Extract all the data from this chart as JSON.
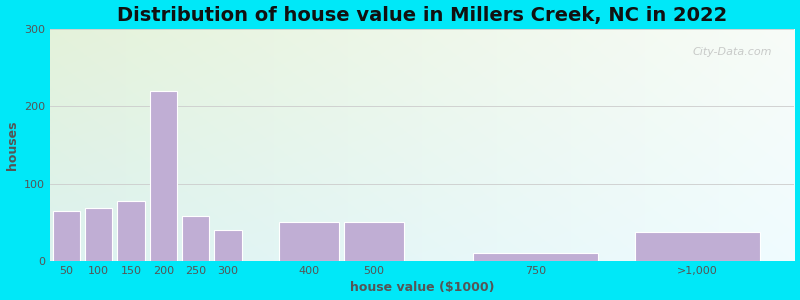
{
  "title": "Distribution of house value in Millers Creek, NC in 2022",
  "xlabel": "house value ($1000)",
  "ylabel": "houses",
  "categories": [
    "50",
    "100",
    "150",
    "200",
    "250",
    "300",
    "400",
    "500",
    "750",
    ">1,000"
  ],
  "values": [
    65,
    68,
    78,
    220,
    58,
    40,
    50,
    50,
    10,
    38
  ],
  "bar_color": "#c0aed4",
  "bar_edge_color": "#ffffff",
  "ylim": [
    0,
    300
  ],
  "yticks": [
    0,
    100,
    200,
    300
  ],
  "background_outer": "#00e8f8",
  "title_fontsize": 14,
  "axis_label_fontsize": 9,
  "tick_fontsize": 8,
  "watermark": "City-Data.com",
  "tick_label_color": "#555555",
  "grid_color": "#cccccc",
  "bar_positions": [
    0,
    1,
    2,
    3,
    4,
    5,
    7,
    9,
    13,
    18
  ],
  "bar_widths": [
    1,
    1,
    1,
    1,
    1,
    1,
    2,
    2,
    4,
    4
  ]
}
